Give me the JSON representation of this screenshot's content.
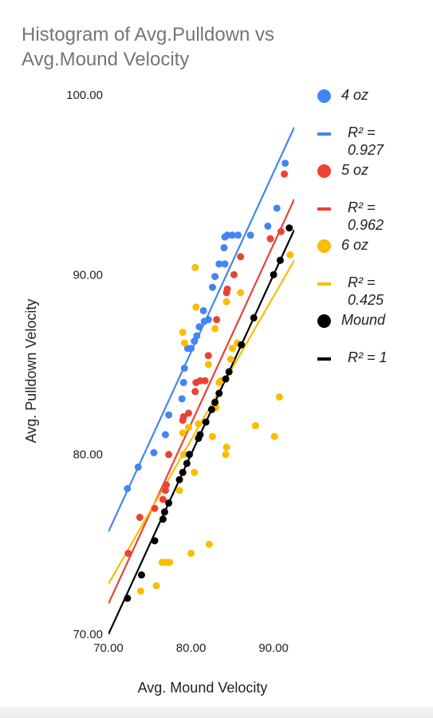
{
  "chart_data": {
    "type": "scatter",
    "title": "Histogram of Avg.Pulldown vs Avg.Mound Velocity",
    "xlabel": "Avg. Mound Velocity",
    "ylabel": "Avg. Pulldown Velocity",
    "xlim": [
      70,
      92.5
    ],
    "ylim": [
      70,
      100
    ],
    "xticks": [
      "70.00",
      "80.00",
      "90.00"
    ],
    "yticks": [
      "70.00",
      "80.00",
      "90.00",
      "100.00"
    ],
    "grid": false,
    "legend_position": "right",
    "series": [
      {
        "name": "4 oz",
        "color": "#4285f4",
        "trend_label": "R² = 0.927",
        "trend": {
          "slope": 1.0,
          "intercept": 5.7
        },
        "points": [
          [
            72.3,
            78.1
          ],
          [
            73.6,
            79.3
          ],
          [
            75.5,
            80.1
          ],
          [
            76.9,
            81.1
          ],
          [
            77.3,
            82.2
          ],
          [
            78.9,
            83.1
          ],
          [
            79.1,
            84.0
          ],
          [
            79.2,
            84.8
          ],
          [
            79.6,
            85.9
          ],
          [
            80.0,
            85.9
          ],
          [
            80.4,
            86.3
          ],
          [
            80.7,
            86.6
          ],
          [
            81.0,
            87.1
          ],
          [
            81.6,
            87.4
          ],
          [
            82.1,
            87.5
          ],
          [
            81.5,
            88.0
          ],
          [
            82.6,
            89.3
          ],
          [
            82.9,
            89.9
          ],
          [
            83.4,
            90.6
          ],
          [
            84.1,
            90.6
          ],
          [
            84.0,
            91.5
          ],
          [
            84.1,
            92.1
          ],
          [
            84.4,
            92.2
          ],
          [
            85.0,
            92.2
          ],
          [
            85.7,
            92.2
          ],
          [
            87.2,
            92.2
          ],
          [
            89.3,
            92.7
          ],
          [
            90.4,
            93.7
          ],
          [
            91.4,
            96.2
          ]
        ]
      },
      {
        "name": "5 oz",
        "color": "#ea4335",
        "trend_label": "R² = 0.962",
        "trend": {
          "slope": 1.0,
          "intercept": 1.7
        },
        "points": [
          [
            72.4,
            74.5
          ],
          [
            73.8,
            76.5
          ],
          [
            75.6,
            77.0
          ],
          [
            76.6,
            77.5
          ],
          [
            77.0,
            78.3
          ],
          [
            76.9,
            78.0
          ],
          [
            77.3,
            80.0
          ],
          [
            79.1,
            82.1
          ],
          [
            79.0,
            81.9
          ],
          [
            79.7,
            82.3
          ],
          [
            80.5,
            83.5
          ],
          [
            80.6,
            84.0
          ],
          [
            81.1,
            84.1
          ],
          [
            81.7,
            84.1
          ],
          [
            82.1,
            85.5
          ],
          [
            83.1,
            87.5
          ],
          [
            84.3,
            89.0
          ],
          [
            84.4,
            89.2
          ],
          [
            85.2,
            90.0
          ],
          [
            86.0,
            91.0
          ],
          [
            89.6,
            92.0
          ],
          [
            90.9,
            92.4
          ],
          [
            91.3,
            95.6
          ]
        ]
      },
      {
        "name": "6 oz",
        "color": "#fbbc04",
        "trend_label": "R² = 0.425",
        "trend": {
          "slope": 0.8,
          "intercept": 16.8
        },
        "points": [
          [
            73.9,
            72.4
          ],
          [
            75.8,
            72.7
          ],
          [
            76.5,
            74.0
          ],
          [
            77.0,
            74.0
          ],
          [
            77.4,
            74.0
          ],
          [
            80.0,
            74.5
          ],
          [
            82.2,
            75.0
          ],
          [
            78.6,
            78.0
          ],
          [
            79.1,
            80.0
          ],
          [
            79.0,
            81.2
          ],
          [
            79.7,
            81.5
          ],
          [
            80.4,
            79.0
          ],
          [
            80.9,
            81.7
          ],
          [
            82.6,
            81.0
          ],
          [
            83.0,
            82.6
          ],
          [
            83.6,
            84.1
          ],
          [
            84.2,
            80.0
          ],
          [
            84.3,
            80.4
          ],
          [
            84.8,
            85.3
          ],
          [
            85.0,
            85.9
          ],
          [
            85.6,
            86.2
          ],
          [
            86.0,
            89.0
          ],
          [
            80.5,
            90.4
          ],
          [
            84.3,
            88.5
          ],
          [
            79.2,
            86.2
          ],
          [
            82.1,
            85.0
          ],
          [
            83.4,
            84.0
          ],
          [
            87.8,
            81.6
          ],
          [
            90.1,
            81.0
          ],
          [
            90.7,
            83.2
          ],
          [
            92.0,
            91.1
          ],
          [
            80.6,
            88.2
          ],
          [
            82.9,
            87.0
          ],
          [
            79.0,
            86.8
          ]
        ]
      },
      {
        "name": "Mound",
        "color": "#000000",
        "trend_label": "R² = 1",
        "trend": {
          "slope": 1.0,
          "intercept": 0.0
        },
        "points": [
          [
            72.3,
            72.0
          ],
          [
            74.0,
            73.3
          ],
          [
            75.6,
            75.2
          ],
          [
            76.6,
            76.4
          ],
          [
            76.8,
            76.8
          ],
          [
            77.3,
            77.3
          ],
          [
            78.6,
            78.6
          ],
          [
            79.0,
            79.0
          ],
          [
            79.5,
            79.5
          ],
          [
            79.8,
            80.0
          ],
          [
            80.9,
            80.9
          ],
          [
            81.1,
            81.1
          ],
          [
            81.8,
            81.8
          ],
          [
            82.5,
            82.5
          ],
          [
            82.9,
            82.9
          ],
          [
            83.4,
            83.4
          ],
          [
            84.2,
            84.2
          ],
          [
            84.6,
            84.6
          ],
          [
            86.1,
            86.1
          ],
          [
            87.6,
            87.6
          ],
          [
            90.0,
            90.0
          ],
          [
            90.8,
            90.8
          ],
          [
            91.9,
            92.6
          ]
        ]
      }
    ]
  }
}
